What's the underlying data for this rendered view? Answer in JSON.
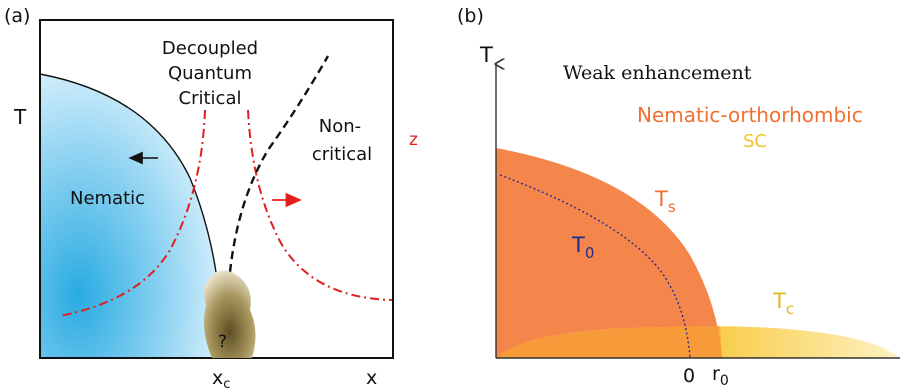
{
  "panel_a": {
    "tag": "(a)",
    "y_axis_label": "T",
    "x_axis_label": "x",
    "critical_point_label": "x",
    "critical_point_sub": "c",
    "region_nematic": "Nematic",
    "region_decoupled_line1": "Decoupled",
    "region_decoupled_line2": "Quantum",
    "region_decoupled_line3": "Critical",
    "region_noncritical_line1": "Non-",
    "region_noncritical_line2": "critical",
    "unknown_marker": "?",
    "side_label": "z",
    "colors": {
      "nematic_fill": "#29abe2",
      "dash_dot": "#e02020",
      "dashed": "#111111",
      "blob": "#8a7a45"
    }
  },
  "panel_b": {
    "tag": "(b)",
    "y_axis_label": "T",
    "title": "Weak enhancement",
    "legend_nematic": "Nematic-orthorhombic",
    "legend_sc": "SC",
    "label_ts": "T",
    "label_ts_sub": "s",
    "label_t0": "T",
    "label_t0_sub": "0",
    "label_tc": "T",
    "label_tc_sub": "c",
    "x_tick_zero": "0",
    "x_tick_r0": "r",
    "x_tick_r0_sub": "0",
    "colors": {
      "nematic_fill": "#f47c3c",
      "sc_fill": "#f7c52a",
      "t0_line": "#2b2b8c",
      "ts_text": "#f07030",
      "t0_text": "#1f2a8f",
      "tc_text": "#e0b820"
    }
  }
}
